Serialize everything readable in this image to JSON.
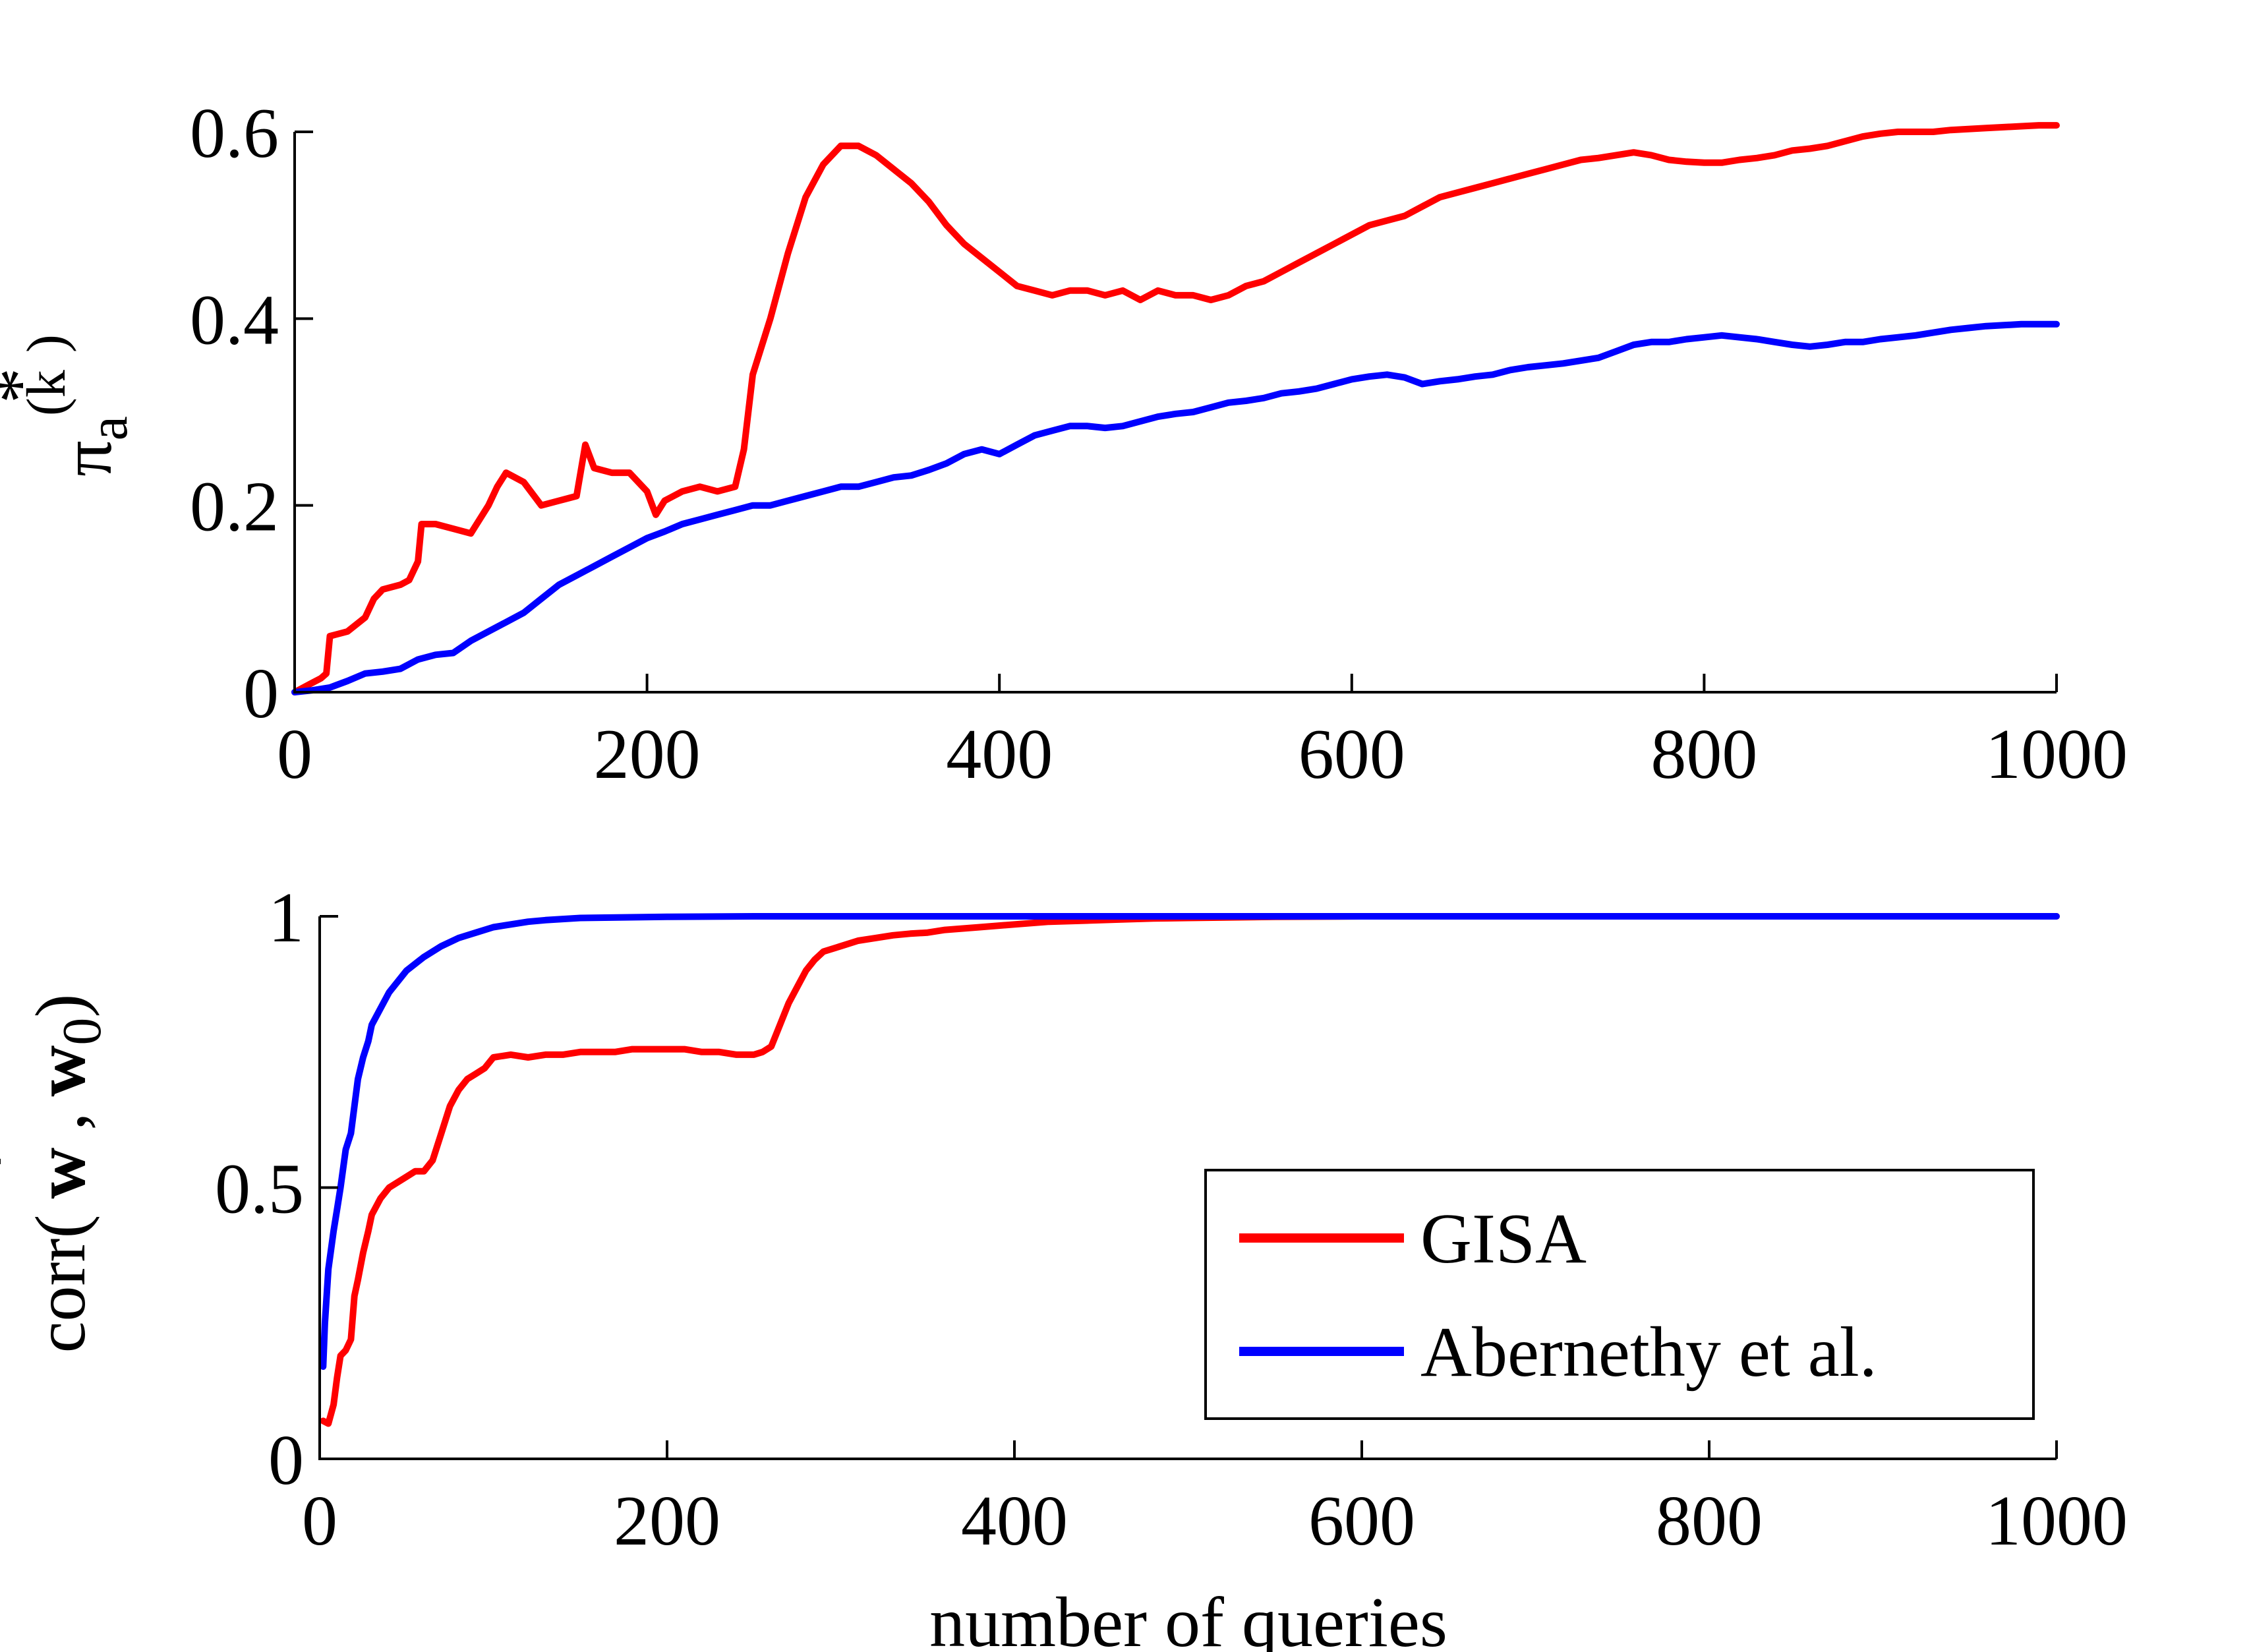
{
  "figure": {
    "colors": {
      "gisa": "#ff0000",
      "abernethy": "#0000ff",
      "axis": "#000000"
    }
  },
  "chart_data": [
    {
      "type": "line",
      "ylabel": "π_a^(k)*",
      "ylabel_parts": {
        "base": "π",
        "sub": "a",
        "sup": "(k",
        "sup_close": ")",
        "star": "*"
      },
      "xlabel": "",
      "xlim": [
        0,
        1000
      ],
      "ylim": [
        0,
        0.62
      ],
      "xticks": [
        0,
        200,
        400,
        600,
        800,
        1000
      ],
      "xtick_labels": [
        "0",
        "200",
        "400",
        "600",
        "800",
        "1000"
      ],
      "yticks": [
        0,
        0.2,
        0.4,
        0.6
      ],
      "ytick_labels": [
        "0",
        "0.2",
        "0.4",
        "0.6"
      ],
      "grid": false,
      "legend": null,
      "series": [
        {
          "name": "GISA",
          "color": "#ff0000",
          "x": [
            0,
            10,
            15,
            18,
            20,
            30,
            40,
            45,
            50,
            60,
            65,
            70,
            72,
            80,
            90,
            100,
            110,
            115,
            120,
            130,
            140,
            150,
            160,
            165,
            170,
            180,
            190,
            200,
            205,
            210,
            220,
            230,
            240,
            250,
            255,
            260,
            270,
            280,
            290,
            300,
            310,
            320,
            330,
            340,
            350,
            360,
            370,
            380,
            390,
            400,
            410,
            420,
            430,
            440,
            450,
            460,
            470,
            480,
            490,
            500,
            510,
            520,
            530,
            540,
            550,
            560,
            570,
            580,
            590,
            600,
            610,
            620,
            630,
            640,
            650,
            660,
            670,
            680,
            690,
            700,
            710,
            720,
            730,
            740,
            750,
            760,
            770,
            780,
            790,
            800,
            810,
            820,
            830,
            840,
            850,
            860,
            870,
            880,
            890,
            900,
            910,
            920,
            930,
            940,
            950,
            960,
            970,
            980,
            990,
            1000
          ],
          "y": [
            0,
            0.01,
            0.015,
            0.02,
            0.06,
            0.065,
            0.08,
            0.1,
            0.11,
            0.115,
            0.12,
            0.14,
            0.18,
            0.18,
            0.175,
            0.17,
            0.2,
            0.22,
            0.235,
            0.225,
            0.2,
            0.205,
            0.21,
            0.265,
            0.24,
            0.235,
            0.235,
            0.215,
            0.19,
            0.205,
            0.215,
            0.22,
            0.215,
            0.22,
            0.26,
            0.34,
            0.4,
            0.47,
            0.53,
            0.565,
            0.585,
            0.585,
            0.575,
            0.56,
            0.545,
            0.525,
            0.5,
            0.48,
            0.465,
            0.45,
            0.435,
            0.43,
            0.425,
            0.43,
            0.43,
            0.425,
            0.43,
            0.42,
            0.43,
            0.425,
            0.425,
            0.42,
            0.425,
            0.435,
            0.44,
            0.45,
            0.46,
            0.47,
            0.48,
            0.49,
            0.5,
            0.505,
            0.51,
            0.52,
            0.53,
            0.535,
            0.54,
            0.545,
            0.55,
            0.555,
            0.56,
            0.565,
            0.57,
            0.572,
            0.575,
            0.578,
            0.575,
            0.57,
            0.568,
            0.567,
            0.567,
            0.57,
            0.572,
            0.575,
            0.58,
            0.582,
            0.585,
            0.59,
            0.595,
            0.598,
            0.6,
            0.6,
            0.6,
            0.602,
            0.603,
            0.604,
            0.605,
            0.606,
            0.607,
            0.607
          ]
        },
        {
          "name": "Abernethy et al.",
          "color": "#0000ff",
          "x": [
            0,
            10,
            20,
            30,
            40,
            50,
            60,
            70,
            80,
            90,
            100,
            110,
            120,
            130,
            140,
            150,
            160,
            170,
            180,
            190,
            200,
            210,
            220,
            230,
            240,
            250,
            260,
            270,
            280,
            290,
            300,
            310,
            320,
            330,
            340,
            350,
            360,
            370,
            380,
            390,
            400,
            410,
            420,
            430,
            440,
            450,
            460,
            470,
            480,
            490,
            500,
            510,
            520,
            530,
            540,
            550,
            560,
            570,
            580,
            590,
            600,
            610,
            620,
            630,
            640,
            650,
            660,
            670,
            680,
            690,
            700,
            710,
            720,
            730,
            740,
            750,
            760,
            770,
            780,
            790,
            800,
            810,
            820,
            830,
            840,
            850,
            860,
            870,
            880,
            890,
            900,
            910,
            920,
            930,
            940,
            950,
            960,
            970,
            980,
            990,
            1000
          ],
          "y": [
            0,
            0.002,
            0.005,
            0.012,
            0.02,
            0.022,
            0.025,
            0.035,
            0.04,
            0.042,
            0.055,
            0.065,
            0.075,
            0.085,
            0.1,
            0.115,
            0.125,
            0.135,
            0.145,
            0.155,
            0.165,
            0.172,
            0.18,
            0.185,
            0.19,
            0.195,
            0.2,
            0.2,
            0.205,
            0.21,
            0.215,
            0.22,
            0.22,
            0.225,
            0.23,
            0.232,
            0.238,
            0.245,
            0.255,
            0.26,
            0.255,
            0.265,
            0.275,
            0.28,
            0.285,
            0.285,
            0.283,
            0.285,
            0.29,
            0.295,
            0.298,
            0.3,
            0.305,
            0.31,
            0.312,
            0.315,
            0.32,
            0.322,
            0.325,
            0.33,
            0.335,
            0.338,
            0.34,
            0.337,
            0.33,
            0.333,
            0.335,
            0.338,
            0.34,
            0.345,
            0.348,
            0.35,
            0.352,
            0.355,
            0.358,
            0.365,
            0.372,
            0.375,
            0.375,
            0.378,
            0.38,
            0.382,
            0.38,
            0.378,
            0.375,
            0.372,
            0.37,
            0.372,
            0.375,
            0.375,
            0.378,
            0.38,
            0.382,
            0.385,
            0.388,
            0.39,
            0.392,
            0.393,
            0.394,
            0.394,
            0.394
          ]
        }
      ]
    },
    {
      "type": "line",
      "ylabel": "corr( w*, w0)",
      "ylabel_parts": {
        "prefix": "corr(",
        "w1": "w",
        "star": "*",
        "comma": ",",
        "w2": "w",
        "sub": "0",
        "close": ")"
      },
      "xlabel": "number of queries",
      "xlim": [
        0,
        1000
      ],
      "ylim": [
        0,
        1
      ],
      "xticks": [
        0,
        200,
        400,
        600,
        800,
        1000
      ],
      "xtick_labels": [
        "0",
        "200",
        "400",
        "600",
        "800",
        "1000"
      ],
      "yticks": [
        0,
        0.5,
        1
      ],
      "ytick_labels": [
        "0",
        "0.5",
        "1"
      ],
      "grid": false,
      "legend": {
        "placement": "bottom-right",
        "entries": [
          "GISA",
          "Abernethy et al."
        ]
      },
      "series": [
        {
          "name": "GISA",
          "color": "#ff0000",
          "x": [
            2,
            5,
            8,
            10,
            12,
            15,
            18,
            20,
            22,
            25,
            28,
            30,
            35,
            40,
            45,
            50,
            55,
            60,
            65,
            70,
            75,
            80,
            85,
            90,
            95,
            100,
            110,
            120,
            130,
            140,
            150,
            160,
            170,
            180,
            190,
            200,
            210,
            220,
            230,
            240,
            250,
            255,
            260,
            265,
            270,
            275,
            280,
            285,
            290,
            300,
            310,
            320,
            330,
            340,
            350,
            360,
            380,
            400,
            420,
            440,
            460,
            480,
            500,
            550,
            600,
            700,
            800,
            900,
            1000
          ],
          "y": [
            0.07,
            0.065,
            0.1,
            0.15,
            0.19,
            0.2,
            0.22,
            0.3,
            0.33,
            0.38,
            0.42,
            0.45,
            0.48,
            0.5,
            0.51,
            0.52,
            0.53,
            0.53,
            0.55,
            0.6,
            0.65,
            0.68,
            0.7,
            0.71,
            0.72,
            0.74,
            0.745,
            0.74,
            0.745,
            0.745,
            0.75,
            0.75,
            0.75,
            0.755,
            0.755,
            0.755,
            0.755,
            0.75,
            0.75,
            0.745,
            0.745,
            0.75,
            0.76,
            0.8,
            0.84,
            0.87,
            0.9,
            0.92,
            0.935,
            0.945,
            0.955,
            0.96,
            0.965,
            0.968,
            0.97,
            0.975,
            0.98,
            0.985,
            0.99,
            0.992,
            0.994,
            0.996,
            0.997,
            0.999,
            1.0,
            1.0,
            1.0,
            1.0,
            1.0
          ]
        },
        {
          "name": "Abernethy et al.",
          "color": "#0000ff",
          "x": [
            2,
            3,
            5,
            8,
            10,
            12,
            15,
            18,
            20,
            22,
            25,
            28,
            30,
            35,
            40,
            45,
            50,
            60,
            70,
            80,
            90,
            100,
            110,
            120,
            130,
            140,
            150,
            175,
            200,
            250,
            300,
            400,
            500,
            600,
            700,
            800,
            900,
            1000
          ],
          "y": [
            0.17,
            0.25,
            0.35,
            0.42,
            0.46,
            0.5,
            0.57,
            0.6,
            0.65,
            0.7,
            0.74,
            0.77,
            0.8,
            0.83,
            0.86,
            0.88,
            0.9,
            0.925,
            0.945,
            0.96,
            0.97,
            0.98,
            0.985,
            0.99,
            0.993,
            0.995,
            0.997,
            0.998,
            0.999,
            1.0,
            1.0,
            1.0,
            1.0,
            1.0,
            1.0,
            1.0,
            1.0,
            1.0
          ]
        }
      ]
    }
  ]
}
